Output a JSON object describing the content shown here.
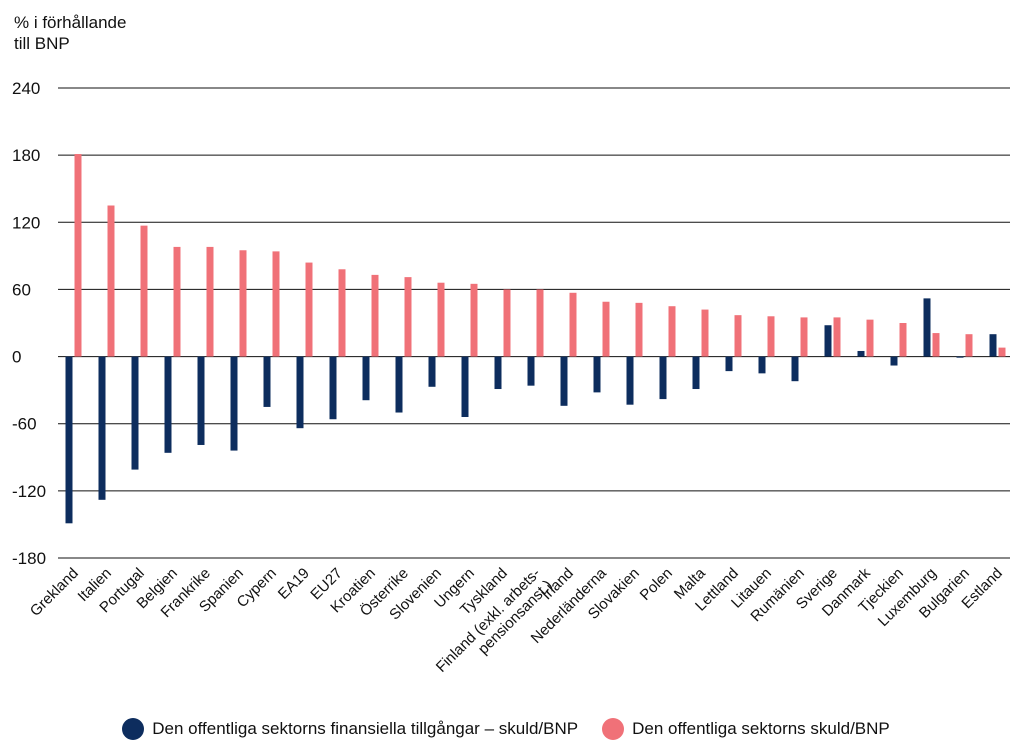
{
  "chart_data": {
    "type": "bar",
    "ylabel": "% i förhållande\ntill BNP",
    "ylim": [
      -180,
      240
    ],
    "yticks": [
      240,
      180,
      120,
      60,
      0,
      -60,
      -120,
      -180
    ],
    "grid": true,
    "legend_position": "bottom",
    "categories": [
      "Grekland",
      "Italien",
      "Portugal",
      "Belgien",
      "Frankrike",
      "Spanien",
      "Cypern",
      "EA19",
      "EU27",
      "Kroatien",
      "Österrike",
      "Slovenien",
      "Ungern",
      "Tyskland",
      "Finland (exkl. arbets-\npensionsanst.)",
      "Irland",
      "Nederländerna",
      "Slovakien",
      "Polen",
      "Malta",
      "Lettland",
      "Litauen",
      "Rumänien",
      "Sverige",
      "Danmark",
      "Tjeckien",
      "Luxemburg",
      "Bulgarien",
      "Estland"
    ],
    "series": [
      {
        "name": "Den offentliga sektorns finansiella tillgångar – skuld/BNP",
        "color": "#0d2d5e",
        "values": [
          -149,
          -128,
          -101,
          -86,
          -79,
          -84,
          -45,
          -64,
          -56,
          -39,
          -50,
          -27,
          -54,
          -29,
          -26,
          -44,
          -32,
          -43,
          -38,
          -29,
          -13,
          -15,
          -22,
          28,
          5,
          -8,
          52,
          -1,
          20
        ]
      },
      {
        "name": "Den offentliga sektorns skuld/BNP",
        "color": "#f07178",
        "values": [
          181,
          135,
          117,
          98,
          98,
          95,
          94,
          84,
          78,
          73,
          71,
          66,
          65,
          60,
          60,
          57,
          49,
          48,
          45,
          42,
          37,
          36,
          35,
          35,
          33,
          30,
          21,
          20,
          8
        ]
      }
    ]
  }
}
